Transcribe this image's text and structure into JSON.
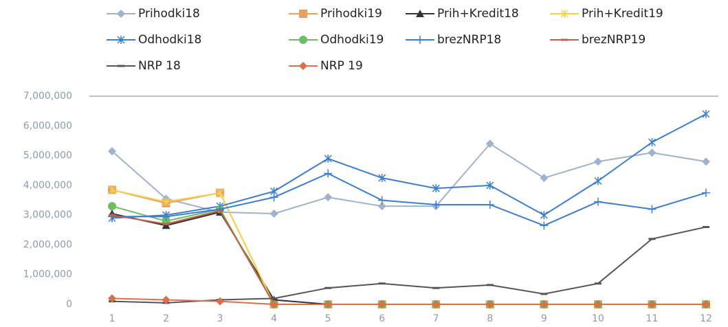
{
  "chart_data": {
    "type": "line",
    "categories": [
      "1",
      "2",
      "3",
      "4",
      "5",
      "6",
      "7",
      "8",
      "9",
      "10",
      "11",
      "12"
    ],
    "series": [
      {
        "name": "Prihodki18",
        "color": "#9fb3cc",
        "marker": "diamond",
        "values": [
          5150000,
          3550000,
          3100000,
          3050000,
          3600000,
          3300000,
          3300000,
          5400000,
          4250000,
          4800000,
          5100000,
          4800000
        ]
      },
      {
        "name": "Prihodki19",
        "color": "#e8a060",
        "marker": "square",
        "values": [
          3850000,
          3400000,
          3750000,
          0,
          0,
          0,
          0,
          0,
          0,
          0,
          0,
          0
        ]
      },
      {
        "name": "Prih+Kredit18",
        "color": "#333333",
        "marker": "triangle",
        "values": [
          3050000,
          2650000,
          3100000,
          150000,
          0,
          0,
          0,
          0,
          0,
          0,
          0,
          0
        ]
      },
      {
        "name": "Prih+Kredit19",
        "color": "#f2d24e",
        "marker": "star",
        "values": [
          3850000,
          3450000,
          3750000,
          0,
          0,
          0,
          0,
          0,
          0,
          0,
          0,
          0
        ]
      },
      {
        "name": "Odhodki18",
        "color": "#3b7dd0",
        "marker": "star",
        "values": [
          2900000,
          3000000,
          3300000,
          3800000,
          4900000,
          4250000,
          3900000,
          4000000,
          3000000,
          4150000,
          5450000,
          6400000
        ]
      },
      {
        "name": "Odhodki19",
        "color": "#6cbf60",
        "marker": "circle",
        "values": [
          3300000,
          2800000,
          3200000,
          0,
          0,
          0,
          0,
          0,
          0,
          0,
          0,
          0
        ]
      },
      {
        "name": "brezNRP18",
        "color": "#3b7dd0",
        "marker": "plus",
        "values": [
          2950000,
          2950000,
          3200000,
          3600000,
          4400000,
          3500000,
          3350000,
          3350000,
          2650000,
          3450000,
          3200000,
          3750000
        ]
      },
      {
        "name": "brezNRP19",
        "color": "#c0604a",
        "marker": "dash",
        "values": [
          3000000,
          2700000,
          3150000,
          0,
          0,
          0,
          0,
          0,
          0,
          0,
          0,
          0
        ]
      },
      {
        "name": "NRP 18",
        "color": "#555555",
        "marker": "dash",
        "values": [
          100000,
          50000,
          150000,
          200000,
          550000,
          700000,
          550000,
          650000,
          350000,
          700000,
          2200000,
          2600000
        ]
      },
      {
        "name": "NRP 19",
        "color": "#d8704a",
        "marker": "diamond",
        "values": [
          200000,
          150000,
          100000,
          0,
          0,
          0,
          0,
          0,
          0,
          0,
          0,
          0
        ]
      }
    ],
    "ylim": [
      0,
      7000000
    ],
    "yticks": [
      0,
      {
        "value": 1000000,
        "label": "1,000,000"
      },
      {
        "value": 2000000,
        "label": "2,000,000"
      },
      {
        "value": 3000000,
        "label": "3,000,000"
      },
      {
        "value": 4000000,
        "label": "4,000,000"
      },
      {
        "value": 5000000,
        "label": "5,000,000"
      },
      {
        "value": 6000000,
        "label": "6,000,000"
      },
      {
        "value": 7000000,
        "label": "7,000,000"
      }
    ],
    "grid": false,
    "legend": "top"
  }
}
